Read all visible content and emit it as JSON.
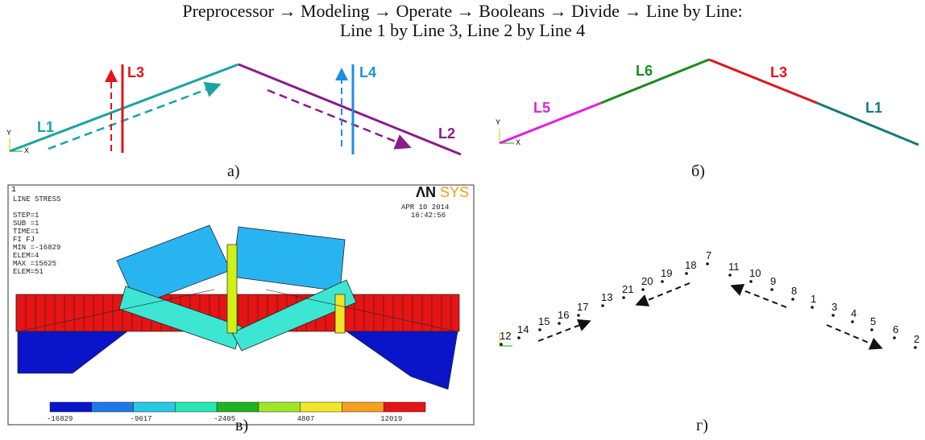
{
  "title_line1": "Preprocessor → Modeling → Operate → Booleans → Divide → Line by Line:",
  "title_line2": "Line 1 by Line 3, Line 2 by Line 4",
  "panel_a": {
    "caption": "а)",
    "labels": {
      "l1": "L1",
      "l2": "L2",
      "l3": "L3",
      "l4": "L4"
    },
    "colors": {
      "l1": "#1aa3a3",
      "l2": "#8b1a8b",
      "l3": "#e0141e",
      "l4": "#1e8fe0"
    }
  },
  "panel_b": {
    "caption": "б)",
    "labels": {
      "l5": "L5",
      "l6": "L6",
      "l3": "L3",
      "l1": "L1"
    },
    "colors": {
      "l5": "#e020e0",
      "l6": "#1a8a1a",
      "l3": "#e0141e",
      "l1": "#137a7a"
    }
  },
  "panel_c": {
    "caption": "в)",
    "header": "LINE STRESS",
    "info": [
      "STEP=1",
      "SUB =1",
      "TIME=1",
      "FI      FJ",
      "MIN =-16829",
      "ELEM=4",
      "MAX =15625",
      "ELEM=51"
    ],
    "logo_an": "ΛN",
    "logo_sys": "SYS",
    "date": "APR 10 2014",
    "time": "16:42:56",
    "scale_ticks": [
      "-16829",
      "-9617",
      "-2405",
      "4807",
      "12019"
    ],
    "scale_colors": [
      "#0a14c8",
      "#1e78e6",
      "#28c8e6",
      "#28e6b4",
      "#1eb41e",
      "#a0e628",
      "#f0e628",
      "#f5a01e",
      "#e61414"
    ]
  },
  "panel_d": {
    "caption": "г)",
    "nodes": [
      "12",
      "14",
      "15",
      "16",
      "17",
      "13",
      "21",
      "20",
      "19",
      "18",
      "7",
      "11",
      "10",
      "9",
      "8",
      "1",
      "3",
      "4",
      "5",
      "6",
      "2"
    ]
  }
}
